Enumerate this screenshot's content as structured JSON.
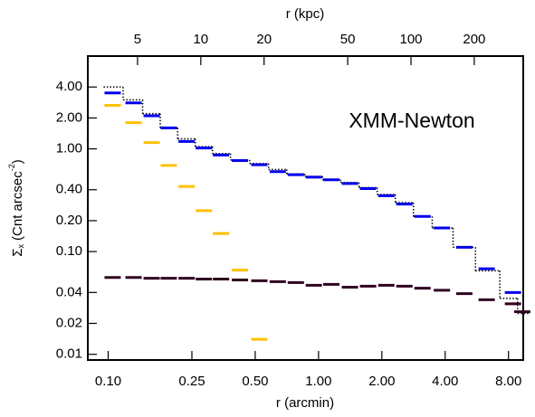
{
  "chart_data": {
    "type": "scatter",
    "annotation": "XMM-Newton",
    "xlabel": "r (arcmin)",
    "x2label": "r (kpc)",
    "ylabel": {
      "symbol": "Σ",
      "sub": "x",
      "unit": "(Cnt arcsec",
      "sup": "-2",
      "close": ")"
    },
    "xscale": "log",
    "yscale": "log",
    "xlim": [
      0.08,
      9.4
    ],
    "x2lim": [
      2.9,
      342
    ],
    "ylim": [
      0.0088,
      8
    ],
    "xticks": [
      {
        "value": 0.1,
        "label": "0.10"
      },
      {
        "value": 0.25,
        "label": "0.25"
      },
      {
        "value": 0.5,
        "label": "0.50"
      },
      {
        "value": 1,
        "label": "1.00"
      },
      {
        "value": 2,
        "label": "2.00"
      },
      {
        "value": 4,
        "label": "4.00"
      },
      {
        "value": 8,
        "label": "8.00"
      }
    ],
    "x2ticks": [
      5,
      10,
      20,
      50,
      100,
      200
    ],
    "yticks": [
      {
        "value": 4,
        "label": "4.00"
      },
      {
        "value": 2,
        "label": "2.00"
      },
      {
        "value": 1,
        "label": "1.00"
      },
      {
        "value": 0.4,
        "label": "0.40"
      },
      {
        "value": 0.2,
        "label": "0.20"
      },
      {
        "value": 0.1,
        "label": "0.10"
      },
      {
        "value": 0.04,
        "label": "0.04"
      },
      {
        "value": 0.02,
        "label": "0.02"
      },
      {
        "value": 0.01,
        "label": "0.01"
      }
    ],
    "series": [
      {
        "color": "#000000",
        "style": "dotted-step",
        "x": [
          0.105,
          0.132,
          0.161,
          0.194,
          0.236,
          0.285,
          0.344,
          0.423,
          0.523,
          0.64,
          0.78,
          0.95,
          1.15,
          1.41,
          1.72,
          2.1,
          2.56,
          3.12,
          3.86,
          4.93,
          6.3,
          8.4,
          9.3
        ],
        "values": [
          4.0,
          3.0,
          2.2,
          1.6,
          1.25,
          1.05,
          0.9,
          0.78,
          0.72,
          0.63,
          0.57,
          0.54,
          0.5,
          0.47,
          0.42,
          0.36,
          0.3,
          0.22,
          0.17,
          0.11,
          0.065,
          0.035,
          0.025
        ]
      },
      {
        "color": "#0000ee",
        "style": "bin",
        "x": [
          0.105,
          0.132,
          0.161,
          0.194,
          0.236,
          0.285,
          0.344,
          0.423,
          0.523,
          0.64,
          0.78,
          0.95,
          1.15,
          1.41,
          1.72,
          2.1,
          2.56,
          3.12,
          3.86,
          4.93,
          6.3,
          8.4
        ],
        "values": [
          3.5,
          2.8,
          2.1,
          1.6,
          1.18,
          1.02,
          0.87,
          0.77,
          0.7,
          0.6,
          0.56,
          0.53,
          0.5,
          0.46,
          0.41,
          0.35,
          0.29,
          0.22,
          0.17,
          0.11,
          0.068,
          0.04
        ]
      },
      {
        "color": "#ffc000",
        "style": "bin",
        "x": [
          0.105,
          0.132,
          0.161,
          0.194,
          0.236,
          0.285,
          0.344,
          0.423,
          0.523
        ],
        "values": [
          2.65,
          1.8,
          1.15,
          0.69,
          0.43,
          0.25,
          0.15,
          0.066,
          0.014
        ]
      },
      {
        "color": "#300020",
        "style": "bin",
        "x": [
          0.105,
          0.132,
          0.161,
          0.194,
          0.236,
          0.285,
          0.344,
          0.423,
          0.523,
          0.64,
          0.78,
          0.95,
          1.15,
          1.41,
          1.72,
          2.1,
          2.56,
          3.12,
          3.86,
          4.93,
          6.3,
          8.4,
          9.3
        ],
        "values": [
          0.056,
          0.056,
          0.055,
          0.055,
          0.055,
          0.054,
          0.054,
          0.053,
          0.052,
          0.051,
          0.05,
          0.047,
          0.048,
          0.045,
          0.046,
          0.047,
          0.046,
          0.044,
          0.042,
          0.039,
          0.034,
          0.031,
          0.026
        ]
      }
    ]
  }
}
